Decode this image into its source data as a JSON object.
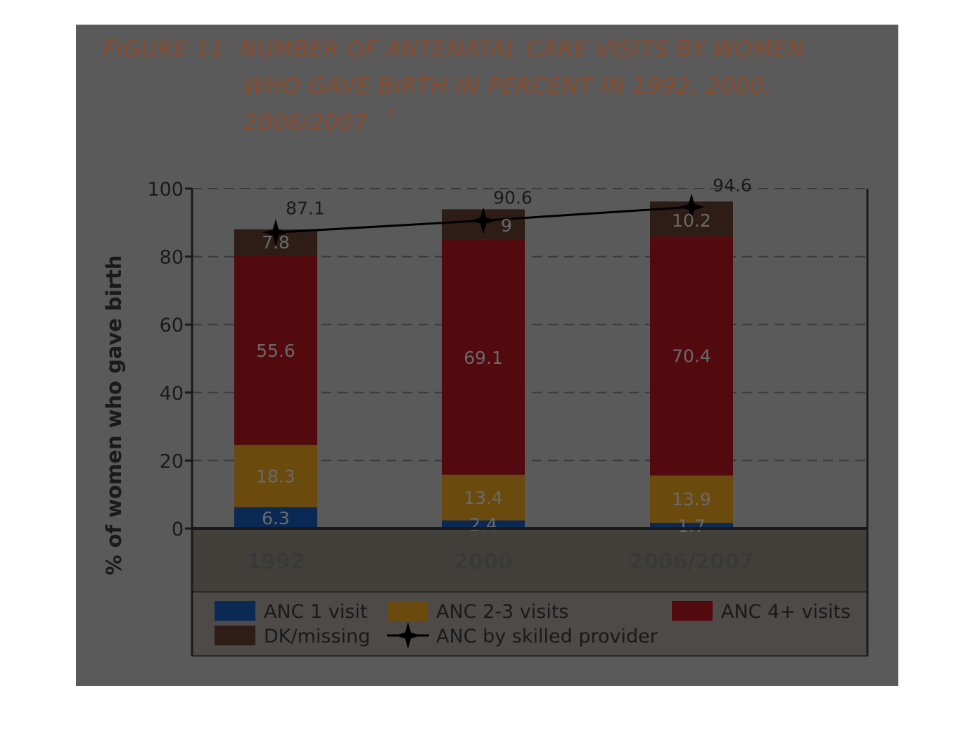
{
  "title": {
    "line1": "FIGURE 11: NUMBER OF ANTENATAL CARE VISITS  BY WOMEN",
    "line2": "WHO GAVE BIRTH IN PERCENT IN 1992, 2000,",
    "line3": "2006/2007",
    "footnote": "7"
  },
  "colors": {
    "panel": "#5a5a5a",
    "anc1": "#0a2a55",
    "anc23": "#6b4a0e",
    "anc4": "#520a0e",
    "dk": "#2e1c17",
    "line": "#000000"
  },
  "chart_data": {
    "type": "bar",
    "stacked": true,
    "categories": [
      "1992",
      "2000",
      "2006/2007"
    ],
    "ylabel": "% of women who gave birth",
    "ylim": [
      0,
      100
    ],
    "yticks": [
      "0",
      "20",
      "40",
      "60",
      "80",
      "100"
    ],
    "grid": true,
    "legend_position": "bottom",
    "series": [
      {
        "name": "ANC 1 visit",
        "values": [
          6.3,
          2.4,
          1.7
        ],
        "labels": [
          "6.3",
          "2.4",
          "1.7"
        ]
      },
      {
        "name": "ANC 2-3 visits",
        "values": [
          18.3,
          13.4,
          13.9
        ],
        "labels": [
          "18.3",
          "13.4",
          "13.9"
        ]
      },
      {
        "name": "ANC 4+ visits",
        "values": [
          55.6,
          69.1,
          70.4
        ],
        "labels": [
          "55.6",
          "69.1",
          "70.4"
        ]
      },
      {
        "name": "DK/missing",
        "values": [
          7.8,
          9,
          10.2
        ],
        "labels": [
          "7.8",
          "9",
          "10.2"
        ]
      }
    ],
    "line_series": {
      "name": "ANC by skilled provider",
      "values": [
        87.1,
        90.6,
        94.6
      ],
      "labels": [
        "87.1",
        "90.6",
        "94.6"
      ]
    }
  }
}
